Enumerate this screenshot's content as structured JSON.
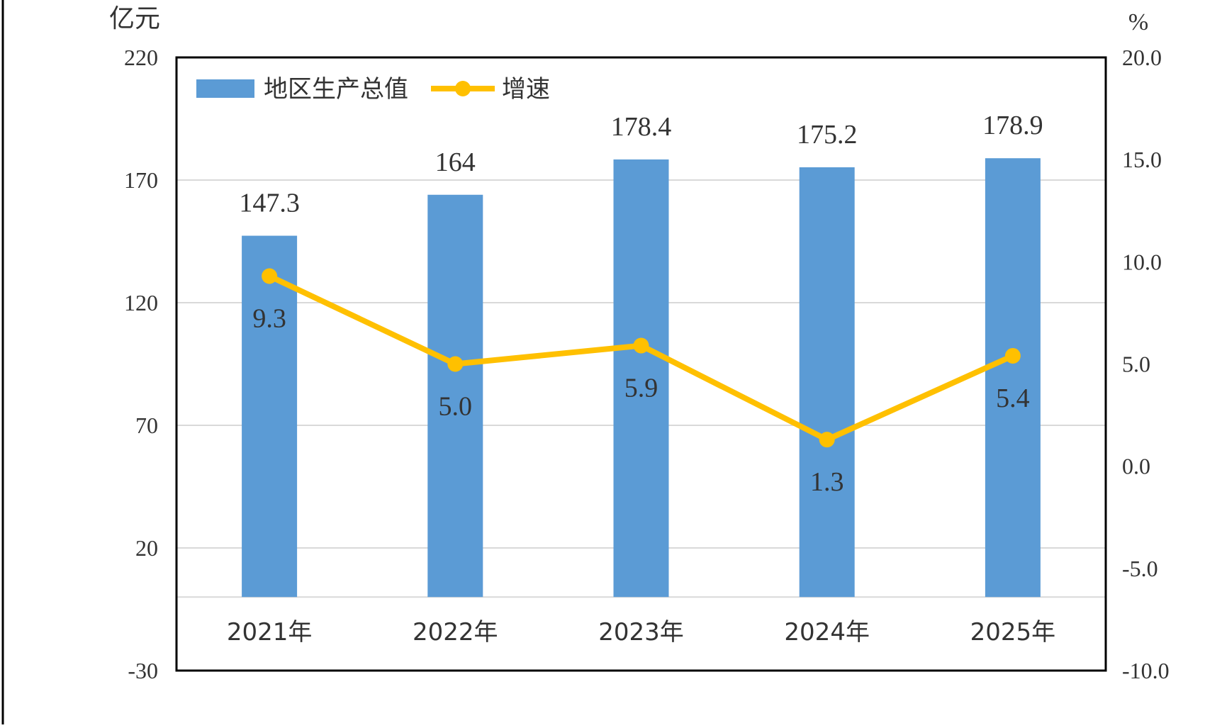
{
  "chart_data": {
    "type": "bar",
    "title": "",
    "categories": [
      "2021年",
      "2022年",
      "2023年",
      "2024年",
      "2025年"
    ],
    "series": [
      {
        "name": "地区生产总值",
        "type": "bar",
        "axis": "left",
        "values": [
          147.3,
          164,
          178.4,
          175.2,
          178.9
        ],
        "labels": [
          "147.3",
          "164",
          "178.4",
          "175.2",
          "178.9"
        ],
        "color": "#5B9BD5"
      },
      {
        "name": "增速",
        "type": "line",
        "axis": "right",
        "values": [
          9.3,
          5.0,
          5.9,
          1.3,
          5.4
        ],
        "labels": [
          "9.3",
          "5.0",
          "5.9",
          "1.3",
          "5.4"
        ],
        "color": "#FFC000"
      }
    ],
    "y_left": {
      "unit": "亿元",
      "range": [
        -30,
        220
      ],
      "ticks": [
        "220",
        "170",
        "120",
        "70",
        "20",
        "-30"
      ],
      "tick_values": [
        220,
        170,
        120,
        70,
        20,
        -30
      ]
    },
    "y_right": {
      "unit": "%",
      "range": [
        -10,
        20
      ],
      "ticks": [
        "20.0",
        "15.0",
        "10.0",
        "5.0",
        "0.0",
        "-5.0",
        "-10.0"
      ],
      "tick_values": [
        20,
        15,
        10,
        5,
        0,
        -5,
        -10
      ]
    },
    "grid": true,
    "legend": "top-left",
    "colors": {
      "gridline": "#D9D9D9",
      "frame": "#000000",
      "baseline": "#D9D9D9"
    }
  }
}
